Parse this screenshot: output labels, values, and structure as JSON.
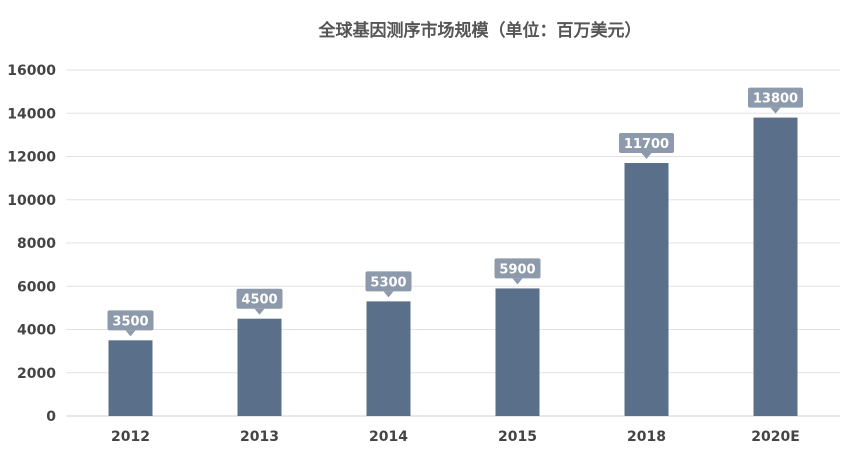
{
  "chart_data": {
    "type": "bar",
    "title": "全球基因测序市场规模（单位：百万美元）",
    "xlabel": "",
    "ylabel": "",
    "categories": [
      "2012",
      "2013",
      "2014",
      "2015",
      "2018",
      "2020E"
    ],
    "values": [
      3500,
      4500,
      5300,
      5900,
      11700,
      13800
    ],
    "ylim": [
      0,
      16000
    ],
    "yticks": [
      0,
      2000,
      4000,
      6000,
      8000,
      10000,
      12000,
      14000,
      16000
    ],
    "grid": true,
    "legend": "none",
    "data_labels": true,
    "colors": {
      "bar": "#5a6f8a",
      "label_bg": "#8d9aab",
      "text": "#444444"
    }
  }
}
